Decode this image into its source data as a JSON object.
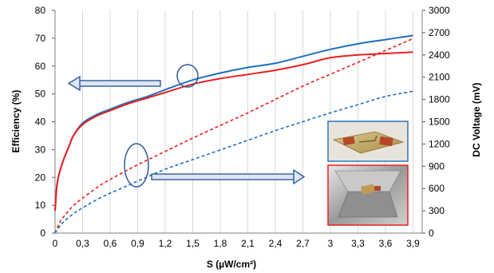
{
  "chart_data": {
    "type": "line",
    "title": "",
    "xlabel": "S (µW/cm²)",
    "ylabel_left": "Efficiency  (%)",
    "ylabel_right": "DC Voltage (mV)",
    "xlim": [
      0,
      4.0
    ],
    "ylim_left": [
      0,
      80
    ],
    "ylim_right": [
      0,
      3000
    ],
    "x_ticks": [
      "0",
      "0,3",
      "0,6",
      "0,9",
      "1,2",
      "1,5",
      "1,8",
      "2,1",
      "2,4",
      "2,7",
      "3",
      "3,3",
      "3,6",
      "3,9"
    ],
    "y_left_ticks": [
      "0",
      "10",
      "20",
      "30",
      "40",
      "50",
      "60",
      "70",
      "80"
    ],
    "y_right_ticks": [
      "0",
      "300",
      "600",
      "900",
      "1200",
      "1500",
      "1800",
      "2100",
      "2400",
      "2700",
      "3000"
    ],
    "grid": "vertical",
    "legend": "none",
    "colors": {
      "blue": "#1f6fc0",
      "red": "#e8201f",
      "arrow": "#2e5b9a",
      "grid": "#d9d9d9"
    },
    "series": [
      {
        "axis": "left",
        "color": "#1f6fc0",
        "style": "solid",
        "x": [
          0,
          0.02,
          0.05,
          0.1,
          0.15,
          0.2,
          0.3,
          0.45,
          0.6,
          0.8,
          1.0,
          1.2,
          1.5,
          1.8,
          2.1,
          2.4,
          2.7,
          3.0,
          3.3,
          3.6,
          3.9
        ],
        "y": [
          8,
          17,
          22,
          27,
          31,
          35,
          39.5,
          42.5,
          44.5,
          47,
          49,
          51.5,
          55,
          57.5,
          59.5,
          61,
          63.5,
          66,
          68,
          69.5,
          71
        ]
      },
      {
        "axis": "left",
        "color": "#e8201f",
        "style": "solid",
        "x": [
          0,
          0.02,
          0.05,
          0.1,
          0.15,
          0.2,
          0.3,
          0.45,
          0.6,
          0.8,
          1.0,
          1.2,
          1.5,
          1.8,
          2.1,
          2.4,
          2.7,
          3.0,
          3.3,
          3.6,
          3.9
        ],
        "y": [
          8,
          17,
          22,
          27,
          31,
          35,
          39,
          42,
          44,
          46.5,
          48.5,
          50.5,
          53.5,
          55.5,
          57,
          58.5,
          60.5,
          63,
          64,
          64.5,
          65
        ]
      },
      {
        "axis": "right",
        "color": "#e8201f",
        "style": "dashed",
        "x": [
          0,
          0.05,
          0.1,
          0.2,
          0.3,
          0.5,
          0.7,
          0.9,
          1.2,
          1.5,
          1.8,
          2.1,
          2.4,
          2.7,
          3.0,
          3.3,
          3.6,
          3.9
        ],
        "y": [
          0,
          140,
          230,
          370,
          470,
          650,
          790,
          920,
          1100,
          1280,
          1450,
          1620,
          1800,
          1980,
          2140,
          2300,
          2460,
          2620
        ]
      },
      {
        "axis": "right",
        "color": "#1f6fc0",
        "style": "dashed",
        "x": [
          0,
          0.05,
          0.1,
          0.2,
          0.3,
          0.5,
          0.7,
          0.9,
          1.2,
          1.5,
          1.8,
          2.1,
          2.4,
          2.7,
          3.0,
          3.3,
          3.6,
          3.9
        ],
        "y": [
          0,
          90,
          160,
          260,
          340,
          480,
          590,
          700,
          860,
          990,
          1120,
          1250,
          1380,
          1500,
          1620,
          1730,
          1840,
          1910
        ]
      }
    ],
    "annotations": [
      {
        "type": "ellipse-arrow",
        "direction": "left",
        "target": "Efficiency"
      },
      {
        "type": "ellipse-arrow",
        "direction": "right",
        "target": "DC Voltage"
      }
    ],
    "inset_images": [
      "rectenna-photo",
      "rectenna-in-reflector-box-photo"
    ]
  }
}
